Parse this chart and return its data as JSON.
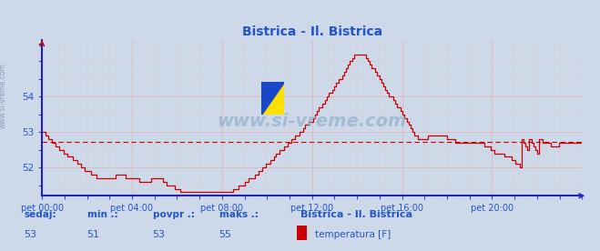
{
  "title": "Bistrica - Il. Bistrica",
  "bg_color": "#cdd9e8",
  "plot_bg_color": "#cdd9e8",
  "line_color": "#cc0000",
  "avg_color": "#cc0000",
  "axis_color": "#2222bb",
  "grid_color_major": "#e8b0b0",
  "grid_color_minor": "#e0c8c8",
  "text_color": "#2255cc",
  "xticklabels": [
    "pet 00:00",
    "pet 04:00",
    "pet 08:00",
    "pet 12:00",
    "pet 16:00",
    "pet 20:00"
  ],
  "xtick_positions": [
    0,
    240,
    480,
    720,
    960,
    1200
  ],
  "yticks": [
    52,
    53,
    54
  ],
  "ymin": 51.2,
  "ymax": 55.6,
  "xmin": 0,
  "xmax": 1440,
  "avg_value": 52.72,
  "sedaj_label": "sedaj:",
  "min_label": "min .:",
  "povpr_label": "povpr .:",
  "maks_label": "maks .:",
  "sedaj": "53",
  "min_val": "51",
  "povpr": "53",
  "maks": "55",
  "legend_label": "temperatura [F]",
  "legend_station": "Bistrica - Il. Bistrica",
  "watermark": "www.si-vreme.com",
  "side_label": "www.si-vreme.com",
  "temperature_data": [
    53.0,
    53.0,
    52.9,
    52.8,
    52.8,
    52.7,
    52.7,
    52.6,
    52.6,
    52.5,
    52.5,
    52.4,
    52.4,
    52.3,
    52.3,
    52.3,
    52.2,
    52.2,
    52.1,
    52.1,
    52.0,
    52.0,
    51.9,
    51.9,
    51.9,
    51.8,
    51.8,
    51.8,
    51.7,
    51.7,
    51.7,
    51.7,
    51.7,
    51.7,
    51.7,
    51.7,
    51.7,
    51.7,
    51.8,
    51.8,
    51.8,
    51.8,
    51.8,
    51.7,
    51.7,
    51.7,
    51.7,
    51.7,
    51.7,
    51.7,
    51.6,
    51.6,
    51.6,
    51.6,
    51.6,
    51.6,
    51.7,
    51.7,
    51.7,
    51.7,
    51.7,
    51.7,
    51.6,
    51.6,
    51.5,
    51.5,
    51.5,
    51.5,
    51.4,
    51.4,
    51.4,
    51.3,
    51.3,
    51.3,
    51.3,
    51.3,
    51.3,
    51.3,
    51.3,
    51.3,
    51.3,
    51.3,
    51.3,
    51.3,
    51.3,
    51.3,
    51.3,
    51.3,
    51.3,
    51.3,
    51.3,
    51.3,
    51.3,
    51.3,
    51.3,
    51.3,
    51.3,
    51.3,
    51.4,
    51.4,
    51.4,
    51.5,
    51.5,
    51.5,
    51.6,
    51.6,
    51.7,
    51.7,
    51.7,
    51.8,
    51.8,
    51.9,
    51.9,
    52.0,
    52.0,
    52.1,
    52.1,
    52.2,
    52.2,
    52.3,
    52.4,
    52.4,
    52.5,
    52.5,
    52.6,
    52.6,
    52.7,
    52.7,
    52.8,
    52.8,
    52.9,
    52.9,
    53.0,
    53.0,
    53.1,
    53.2,
    53.2,
    53.3,
    53.3,
    53.4,
    53.5,
    53.6,
    53.7,
    53.7,
    53.8,
    53.9,
    54.0,
    54.1,
    54.1,
    54.2,
    54.3,
    54.4,
    54.5,
    54.5,
    54.6,
    54.7,
    54.8,
    54.9,
    55.0,
    55.1,
    55.2,
    55.2,
    55.2,
    55.2,
    55.2,
    55.2,
    55.1,
    55.0,
    54.9,
    54.8,
    54.8,
    54.7,
    54.6,
    54.5,
    54.4,
    54.3,
    54.2,
    54.1,
    54.0,
    54.0,
    53.9,
    53.8,
    53.7,
    53.7,
    53.6,
    53.5,
    53.4,
    53.3,
    53.2,
    53.1,
    53.0,
    52.9,
    52.9,
    52.8,
    52.8,
    52.8,
    52.8,
    52.8,
    52.9,
    52.9,
    52.9,
    52.9,
    52.9,
    52.9,
    52.9,
    52.9,
    52.9,
    52.9,
    52.8,
    52.8,
    52.8,
    52.8,
    52.7,
    52.7,
    52.7,
    52.7,
    52.7,
    52.7,
    52.7,
    52.7,
    52.7,
    52.7,
    52.7,
    52.7,
    52.7,
    52.7,
    52.7,
    52.6,
    52.6,
    52.6,
    52.5,
    52.5,
    52.4,
    52.4,
    52.4,
    52.4,
    52.4,
    52.3,
    52.3,
    52.3,
    52.3,
    52.2,
    52.2,
    52.1,
    52.1,
    52.0,
    52.8,
    52.7,
    52.6,
    52.5,
    52.8,
    52.7,
    52.6,
    52.5,
    52.4,
    52.8,
    52.8,
    52.7,
    52.7,
    52.7,
    52.7,
    52.6,
    52.6,
    52.6,
    52.6,
    52.7,
    52.7,
    52.7,
    52.7,
    52.7,
    52.7,
    52.7,
    52.7,
    52.7,
    52.7,
    52.7,
    52.7,
    52.7
  ]
}
